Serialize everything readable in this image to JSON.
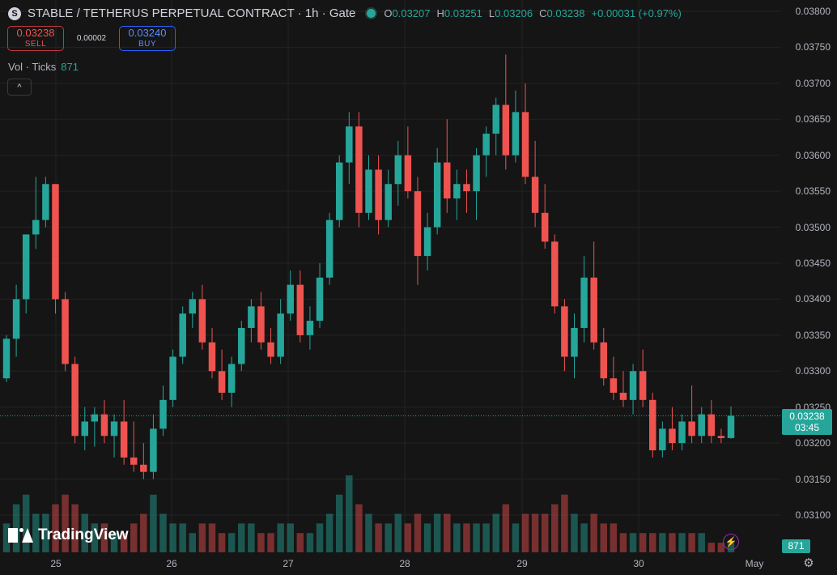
{
  "header": {
    "logo_letter": "S",
    "title": "STABLE / TETHERUS PERPETUAL CONTRACT · 1h · Gate",
    "ohlc": {
      "o_label": "O",
      "o": "0.03207",
      "h_label": "H",
      "h": "0.03251",
      "l_label": "L",
      "l": "0.03206",
      "c_label": "C",
      "c": "0.03238",
      "change": "+0.00031 (+0.97%)"
    }
  },
  "trade": {
    "sell_price": "0.03238",
    "sell_label": "SELL",
    "spread": "0.00002",
    "buy_price": "0.03240",
    "buy_label": "BUY"
  },
  "volume_indicator": {
    "label": "Vol · Ticks",
    "value": "871"
  },
  "collapse_icon": "^",
  "last_price": {
    "price": "0.03238",
    "countdown": "03:45"
  },
  "volume_badge": "871",
  "watermark": {
    "text": "TradingView"
  },
  "price_axis": [
    "0.03800",
    "0.03750",
    "0.03700",
    "0.03650",
    "0.03600",
    "0.03550",
    "0.03500",
    "0.03450",
    "0.03400",
    "0.03350",
    "0.03300",
    "0.03250",
    "0.03200",
    "0.03150",
    "0.03100"
  ],
  "time_axis": [
    "25",
    "26",
    "27",
    "28",
    "29",
    "30",
    "May"
  ],
  "icons": {
    "settings": "gear-icon",
    "flash": "lightning-icon"
  },
  "colors": {
    "up": "#26a69a",
    "down": "#ef5350",
    "background": "#151515",
    "grid": "#232323"
  },
  "chart_data": {
    "type": "candlestick",
    "interval": "1h",
    "symbol": "STABLE / TETHERUS PERPETUAL CONTRACT",
    "exchange": "Gate",
    "price_range": [
      0.0306,
      0.038
    ],
    "time_labels": [
      "25",
      "26",
      "27",
      "28",
      "29",
      "30",
      "May"
    ],
    "candles": [
      [
        0.0329,
        0.0335,
        0.03285,
        0.03345
      ],
      [
        0.03345,
        0.0342,
        0.0332,
        0.034
      ],
      [
        0.034,
        0.0349,
        0.0338,
        0.0349
      ],
      [
        0.0349,
        0.0357,
        0.0347,
        0.0351
      ],
      [
        0.0351,
        0.0357,
        0.035,
        0.0356
      ],
      [
        0.0356,
        0.0356,
        0.0338,
        0.034
      ],
      [
        0.034,
        0.0341,
        0.033,
        0.0331
      ],
      [
        0.0331,
        0.0332,
        0.032,
        0.0321
      ],
      [
        0.0321,
        0.0325,
        0.0319,
        0.0323
      ],
      [
        0.0323,
        0.0325,
        0.03195,
        0.0324
      ],
      [
        0.0324,
        0.0326,
        0.032,
        0.0321
      ],
      [
        0.0321,
        0.0324,
        0.0318,
        0.0323
      ],
      [
        0.0323,
        0.0326,
        0.0317,
        0.0318
      ],
      [
        0.0318,
        0.0323,
        0.0316,
        0.0317
      ],
      [
        0.0317,
        0.032,
        0.0315,
        0.0316
      ],
      [
        0.0316,
        0.0324,
        0.0315,
        0.0322
      ],
      [
        0.0322,
        0.0328,
        0.0321,
        0.0326
      ],
      [
        0.0326,
        0.0333,
        0.0325,
        0.0332
      ],
      [
        0.0332,
        0.0339,
        0.0331,
        0.0338
      ],
      [
        0.0338,
        0.0341,
        0.0336,
        0.034
      ],
      [
        0.034,
        0.0342,
        0.0333,
        0.0334
      ],
      [
        0.0334,
        0.0336,
        0.0329,
        0.033
      ],
      [
        0.033,
        0.0333,
        0.0326,
        0.0327
      ],
      [
        0.0327,
        0.0332,
        0.0325,
        0.0331
      ],
      [
        0.0331,
        0.0337,
        0.033,
        0.0336
      ],
      [
        0.0336,
        0.034,
        0.0334,
        0.0339
      ],
      [
        0.0339,
        0.0341,
        0.0333,
        0.0334
      ],
      [
        0.0334,
        0.0336,
        0.0331,
        0.0332
      ],
      [
        0.0332,
        0.034,
        0.0331,
        0.0338
      ],
      [
        0.0338,
        0.0344,
        0.0337,
        0.0342
      ],
      [
        0.0342,
        0.0344,
        0.0334,
        0.0335
      ],
      [
        0.0335,
        0.0339,
        0.0333,
        0.0337
      ],
      [
        0.0337,
        0.0345,
        0.0336,
        0.0343
      ],
      [
        0.0343,
        0.0352,
        0.0342,
        0.0351
      ],
      [
        0.0351,
        0.036,
        0.035,
        0.0359
      ],
      [
        0.0359,
        0.0366,
        0.0356,
        0.0364
      ],
      [
        0.0364,
        0.0366,
        0.035,
        0.0352
      ],
      [
        0.0352,
        0.036,
        0.0351,
        0.0358
      ],
      [
        0.0358,
        0.036,
        0.0349,
        0.0351
      ],
      [
        0.0351,
        0.0358,
        0.035,
        0.0356
      ],
      [
        0.0356,
        0.0362,
        0.0353,
        0.036
      ],
      [
        0.036,
        0.0364,
        0.0354,
        0.0355
      ],
      [
        0.0355,
        0.0357,
        0.0342,
        0.0346
      ],
      [
        0.0346,
        0.0352,
        0.0344,
        0.035
      ],
      [
        0.035,
        0.0361,
        0.0349,
        0.0359
      ],
      [
        0.0359,
        0.0365,
        0.0352,
        0.0354
      ],
      [
        0.0354,
        0.0358,
        0.0351,
        0.0356
      ],
      [
        0.0356,
        0.0358,
        0.0352,
        0.0355
      ],
      [
        0.0355,
        0.0361,
        0.0351,
        0.036
      ],
      [
        0.036,
        0.0364,
        0.0357,
        0.0363
      ],
      [
        0.0363,
        0.0368,
        0.036,
        0.0367
      ],
      [
        0.0367,
        0.0374,
        0.0358,
        0.036
      ],
      [
        0.036,
        0.0369,
        0.0359,
        0.0366
      ],
      [
        0.0366,
        0.037,
        0.0356,
        0.0357
      ],
      [
        0.0357,
        0.0362,
        0.035,
        0.0352
      ],
      [
        0.0352,
        0.0356,
        0.0347,
        0.0348
      ],
      [
        0.0348,
        0.0349,
        0.0338,
        0.0339
      ],
      [
        0.0339,
        0.034,
        0.033,
        0.0332
      ],
      [
        0.0332,
        0.0338,
        0.0329,
        0.0336
      ],
      [
        0.0336,
        0.0346,
        0.0334,
        0.0343
      ],
      [
        0.0343,
        0.0348,
        0.0333,
        0.0334
      ],
      [
        0.0334,
        0.0336,
        0.0328,
        0.0329
      ],
      [
        0.0329,
        0.0332,
        0.0326,
        0.0327
      ],
      [
        0.0327,
        0.033,
        0.0325,
        0.0326
      ],
      [
        0.0326,
        0.0331,
        0.0324,
        0.033
      ],
      [
        0.033,
        0.0333,
        0.0325,
        0.0326
      ],
      [
        0.0326,
        0.0327,
        0.0318,
        0.0319
      ],
      [
        0.0319,
        0.0323,
        0.0318,
        0.0322
      ],
      [
        0.0322,
        0.0325,
        0.0319,
        0.032
      ],
      [
        0.032,
        0.0324,
        0.0319,
        0.0323
      ],
      [
        0.0323,
        0.0328,
        0.032,
        0.0321
      ],
      [
        0.0321,
        0.0325,
        0.032,
        0.0324
      ],
      [
        0.0324,
        0.0326,
        0.032,
        0.0321
      ],
      [
        0.0321,
        0.0322,
        0.032,
        0.03207
      ],
      [
        0.03207,
        0.03251,
        0.03206,
        0.03238
      ]
    ],
    "volumes": [
      3,
      5,
      6,
      4,
      4,
      5,
      6,
      5,
      4,
      3,
      3,
      2,
      2,
      3,
      4,
      6,
      4,
      3,
      3,
      2,
      3,
      3,
      2,
      2,
      3,
      3,
      2,
      2,
      3,
      3,
      2,
      2,
      3,
      4,
      6,
      8,
      5,
      4,
      3,
      3,
      4,
      3,
      4,
      3,
      4,
      4,
      3,
      3,
      3,
      3,
      4,
      5,
      3,
      4,
      4,
      4,
      5,
      6,
      4,
      3,
      4,
      3,
      3,
      2,
      2,
      2,
      2,
      2,
      2,
      2,
      2,
      2,
      1,
      1,
      1
    ]
  }
}
